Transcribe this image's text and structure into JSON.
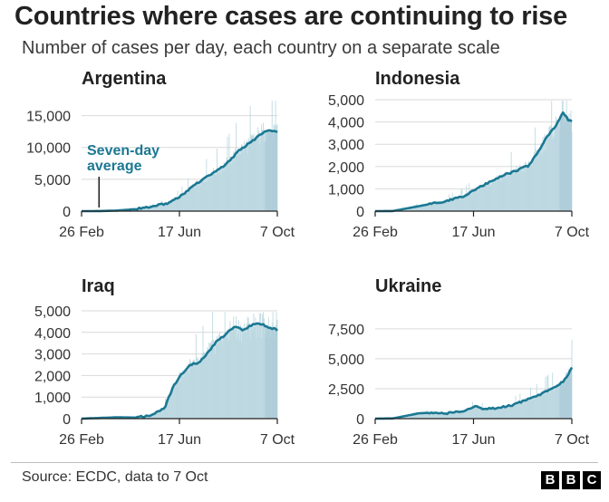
{
  "title": "Countries where cases are continuing to rise",
  "subtitle": "Number of cases per day, each country on a separate scale",
  "source": "Source: ECDC, data to 7 Oct",
  "logo": [
    "B",
    "B",
    "C"
  ],
  "colors": {
    "line": "#1b7893",
    "area_light": "#cfe3ea",
    "area_mid": "#a9cbd7",
    "bars": "#b9d6df",
    "axis": "#222222",
    "grid": "#d9d9d9"
  },
  "chart_data": [
    {
      "type": "area",
      "title": "Argentina",
      "xlabel": "",
      "ylabel": "",
      "x_ticks": [
        "26 Feb",
        "17 Jun",
        "7 Oct"
      ],
      "y_ticks": [
        "0",
        "5,000",
        "10,000",
        "15,000"
      ],
      "ylim": [
        0,
        17500
      ],
      "annotation": {
        "text": [
          "Seven-day",
          "average"
        ],
        "at_day": 20
      },
      "series": [
        {
          "points": [
            [
              0,
              0
            ],
            [
              20,
              10
            ],
            [
              40,
              80
            ],
            [
              60,
              300
            ],
            [
              80,
              700
            ],
            [
              100,
              1300
            ],
            [
              115,
              2500
            ],
            [
              130,
              4200
            ],
            [
              145,
              5500
            ],
            [
              160,
              6800
            ],
            [
              170,
              8000
            ],
            [
              180,
              9500
            ],
            [
              190,
              10500
            ],
            [
              200,
              11500
            ],
            [
              207,
              12300
            ],
            [
              214,
              12700
            ],
            [
              218,
              12500
            ],
            [
              224,
              12400
            ]
          ]
        }
      ]
    },
    {
      "type": "area",
      "title": "Indonesia",
      "xlabel": "",
      "ylabel": "",
      "x_ticks": [
        "26 Feb",
        "17 Jun",
        "7 Oct"
      ],
      "y_ticks": [
        "0",
        "1,000",
        "2,000",
        "3,000",
        "4,000",
        "5,000"
      ],
      "ylim": [
        0,
        5000
      ],
      "series": [
        {
          "points": [
            [
              0,
              0
            ],
            [
              20,
              5
            ],
            [
              40,
              150
            ],
            [
              60,
              300
            ],
            [
              80,
              450
            ],
            [
              100,
              650
            ],
            [
              115,
              1000
            ],
            [
              130,
              1300
            ],
            [
              145,
              1600
            ],
            [
              160,
              1800
            ],
            [
              175,
              2050
            ],
            [
              185,
              2600
            ],
            [
              195,
              3300
            ],
            [
              205,
              3800
            ],
            [
              214,
              4400
            ],
            [
              220,
              4100
            ],
            [
              224,
              4050
            ]
          ]
        }
      ]
    },
    {
      "type": "area",
      "title": "Iraq",
      "xlabel": "",
      "ylabel": "",
      "x_ticks": [
        "26 Feb",
        "17 Jun",
        "7 Oct"
      ],
      "y_ticks": [
        "0",
        "1,000",
        "2,000",
        "3,000",
        "4,000",
        "5,000"
      ],
      "ylim": [
        0,
        5000
      ],
      "series": [
        {
          "points": [
            [
              0,
              0
            ],
            [
              20,
              30
            ],
            [
              40,
              60
            ],
            [
              60,
              50
            ],
            [
              80,
              150
            ],
            [
              95,
              500
            ],
            [
              105,
              1500
            ],
            [
              115,
              2100
            ],
            [
              125,
              2500
            ],
            [
              135,
              2600
            ],
            [
              145,
              3100
            ],
            [
              155,
              3600
            ],
            [
              165,
              3900
            ],
            [
              175,
              4300
            ],
            [
              185,
              4100
            ],
            [
              195,
              4350
            ],
            [
              205,
              4400
            ],
            [
              214,
              4250
            ],
            [
              224,
              4100
            ]
          ]
        }
      ]
    },
    {
      "type": "area",
      "title": "Ukraine",
      "xlabel": "",
      "ylabel": "",
      "x_ticks": [
        "26 Feb",
        "17 Jun",
        "7 Oct"
      ],
      "y_ticks": [
        "0",
        "2,500",
        "5,000",
        "7,500"
      ],
      "ylim": [
        0,
        9000
      ],
      "series": [
        {
          "points": [
            [
              0,
              0
            ],
            [
              20,
              20
            ],
            [
              40,
              300
            ],
            [
              50,
              450
            ],
            [
              60,
              480
            ],
            [
              70,
              430
            ],
            [
              80,
              420
            ],
            [
              100,
              650
            ],
            [
              115,
              1000
            ],
            [
              125,
              800
            ],
            [
              140,
              900
            ],
            [
              155,
              1100
            ],
            [
              170,
              1500
            ],
            [
              185,
              1900
            ],
            [
              195,
              2300
            ],
            [
              205,
              2600
            ],
            [
              214,
              3100
            ],
            [
              220,
              3700
            ],
            [
              224,
              4300
            ]
          ]
        }
      ]
    }
  ]
}
